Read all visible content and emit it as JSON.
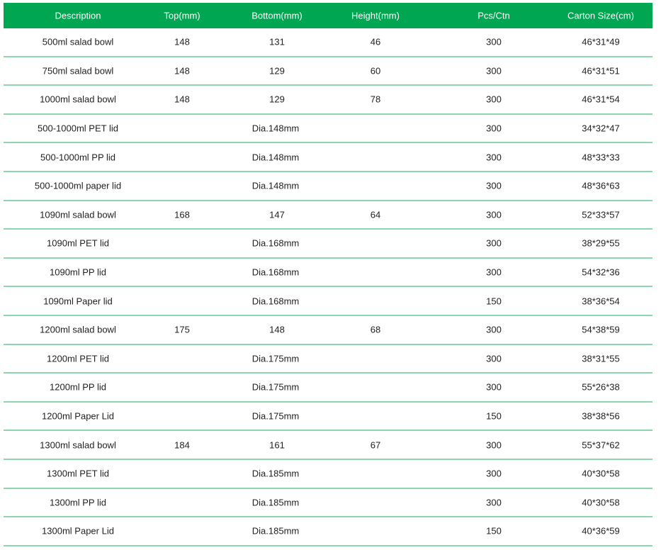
{
  "header": {
    "columns": [
      "Description",
      "Top(mm)",
      "Bottom(mm)",
      "Height(mm)",
      "Pcs/Ctn",
      "Carton Size(cm)"
    ]
  },
  "colors": {
    "header_bg": "#00a651",
    "row_divider": "#8fd5b0"
  },
  "rows": [
    {
      "description": "500ml salad bowl",
      "top": "148",
      "bottom": "131",
      "height": "46",
      "pcs": "300",
      "carton": "46*31*49"
    },
    {
      "description": "750ml salad bowl",
      "top": "148",
      "bottom": "129",
      "height": "60",
      "pcs": "300",
      "carton": "46*31*51"
    },
    {
      "description": "1000ml salad bowl",
      "top": "148",
      "bottom": "129",
      "height": "78",
      "pcs": "300",
      "carton": "46*31*54"
    },
    {
      "description": "500-1000ml PET lid",
      "dia": "Dia.148mm",
      "pcs": "300",
      "carton": "34*32*47"
    },
    {
      "description": "500-1000ml PP lid",
      "dia": "Dia.148mm",
      "pcs": "300",
      "carton": "48*33*33"
    },
    {
      "description": "500-1000ml paper lid",
      "dia": "Dia.148mm",
      "pcs": "300",
      "carton": "48*36*63"
    },
    {
      "description": "1090ml salad bowl",
      "top": "168",
      "bottom": "147",
      "height": "64",
      "pcs": "300",
      "carton": "52*33*57"
    },
    {
      "description": "1090ml PET lid",
      "dia": "Dia.168mm",
      "pcs": "300",
      "carton": "38*29*55"
    },
    {
      "description": "1090ml PP lid",
      "dia": "Dia.168mm",
      "pcs": "300",
      "carton": "54*32*36"
    },
    {
      "description": "1090ml Paper lid",
      "dia": "Dia.168mm",
      "pcs": "150",
      "carton": "38*36*54"
    },
    {
      "description": "1200ml salad bowl",
      "top": "175",
      "bottom": "148",
      "height": "68",
      "pcs": "300",
      "carton": "54*38*59"
    },
    {
      "description": "1200ml PET lid",
      "dia": "Dia.175mm",
      "pcs": "300",
      "carton": "38*31*55"
    },
    {
      "description": "1200ml PP lid",
      "dia": "Dia.175mm",
      "pcs": "300",
      "carton": "55*26*38"
    },
    {
      "description": "1200ml Paper Lid",
      "dia": "Dia.175mm",
      "pcs": "150",
      "carton": "38*38*56"
    },
    {
      "description": "1300ml salad bowl",
      "top": "184",
      "bottom": "161",
      "height": "67",
      "pcs": "300",
      "carton": "55*37*62"
    },
    {
      "description": "1300ml PET lid",
      "dia": "Dia.185mm",
      "pcs": "300",
      "carton": "40*30*58"
    },
    {
      "description": "1300ml PP lid",
      "dia": "Dia.185mm",
      "pcs": "300",
      "carton": "40*30*58"
    },
    {
      "description": "1300ml Paper Lid",
      "dia": "Dia.185mm",
      "pcs": "150",
      "carton": "40*36*59"
    }
  ]
}
